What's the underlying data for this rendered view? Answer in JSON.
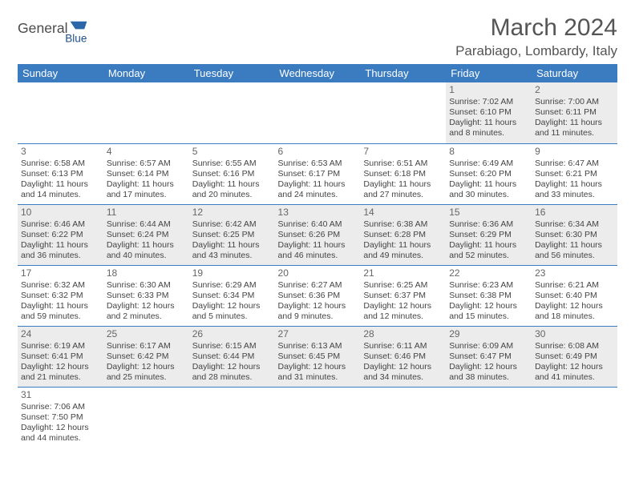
{
  "brand": {
    "name1": "General",
    "name2": "Blue",
    "logo_color": "#1c4e8a",
    "shape_color": "#2b66a8"
  },
  "title": "March 2024",
  "location": "Parabiago, Lombardy, Italy",
  "colors": {
    "header_bg": "#3b7bbf",
    "header_fg": "#ffffff",
    "row_alt": "#ececec",
    "border": "#3b7bbf",
    "text": "#444444"
  },
  "weekdays": [
    "Sunday",
    "Monday",
    "Tuesday",
    "Wednesday",
    "Thursday",
    "Friday",
    "Saturday"
  ],
  "weeks": [
    [
      null,
      null,
      null,
      null,
      null,
      {
        "d": "1",
        "sr": "Sunrise: 7:02 AM",
        "ss": "Sunset: 6:10 PM",
        "dl1": "Daylight: 11 hours",
        "dl2": "and 8 minutes."
      },
      {
        "d": "2",
        "sr": "Sunrise: 7:00 AM",
        "ss": "Sunset: 6:11 PM",
        "dl1": "Daylight: 11 hours",
        "dl2": "and 11 minutes."
      }
    ],
    [
      {
        "d": "3",
        "sr": "Sunrise: 6:58 AM",
        "ss": "Sunset: 6:13 PM",
        "dl1": "Daylight: 11 hours",
        "dl2": "and 14 minutes."
      },
      {
        "d": "4",
        "sr": "Sunrise: 6:57 AM",
        "ss": "Sunset: 6:14 PM",
        "dl1": "Daylight: 11 hours",
        "dl2": "and 17 minutes."
      },
      {
        "d": "5",
        "sr": "Sunrise: 6:55 AM",
        "ss": "Sunset: 6:16 PM",
        "dl1": "Daylight: 11 hours",
        "dl2": "and 20 minutes."
      },
      {
        "d": "6",
        "sr": "Sunrise: 6:53 AM",
        "ss": "Sunset: 6:17 PM",
        "dl1": "Daylight: 11 hours",
        "dl2": "and 24 minutes."
      },
      {
        "d": "7",
        "sr": "Sunrise: 6:51 AM",
        "ss": "Sunset: 6:18 PM",
        "dl1": "Daylight: 11 hours",
        "dl2": "and 27 minutes."
      },
      {
        "d": "8",
        "sr": "Sunrise: 6:49 AM",
        "ss": "Sunset: 6:20 PM",
        "dl1": "Daylight: 11 hours",
        "dl2": "and 30 minutes."
      },
      {
        "d": "9",
        "sr": "Sunrise: 6:47 AM",
        "ss": "Sunset: 6:21 PM",
        "dl1": "Daylight: 11 hours",
        "dl2": "and 33 minutes."
      }
    ],
    [
      {
        "d": "10",
        "sr": "Sunrise: 6:46 AM",
        "ss": "Sunset: 6:22 PM",
        "dl1": "Daylight: 11 hours",
        "dl2": "and 36 minutes."
      },
      {
        "d": "11",
        "sr": "Sunrise: 6:44 AM",
        "ss": "Sunset: 6:24 PM",
        "dl1": "Daylight: 11 hours",
        "dl2": "and 40 minutes."
      },
      {
        "d": "12",
        "sr": "Sunrise: 6:42 AM",
        "ss": "Sunset: 6:25 PM",
        "dl1": "Daylight: 11 hours",
        "dl2": "and 43 minutes."
      },
      {
        "d": "13",
        "sr": "Sunrise: 6:40 AM",
        "ss": "Sunset: 6:26 PM",
        "dl1": "Daylight: 11 hours",
        "dl2": "and 46 minutes."
      },
      {
        "d": "14",
        "sr": "Sunrise: 6:38 AM",
        "ss": "Sunset: 6:28 PM",
        "dl1": "Daylight: 11 hours",
        "dl2": "and 49 minutes."
      },
      {
        "d": "15",
        "sr": "Sunrise: 6:36 AM",
        "ss": "Sunset: 6:29 PM",
        "dl1": "Daylight: 11 hours",
        "dl2": "and 52 minutes."
      },
      {
        "d": "16",
        "sr": "Sunrise: 6:34 AM",
        "ss": "Sunset: 6:30 PM",
        "dl1": "Daylight: 11 hours",
        "dl2": "and 56 minutes."
      }
    ],
    [
      {
        "d": "17",
        "sr": "Sunrise: 6:32 AM",
        "ss": "Sunset: 6:32 PM",
        "dl1": "Daylight: 11 hours",
        "dl2": "and 59 minutes."
      },
      {
        "d": "18",
        "sr": "Sunrise: 6:30 AM",
        "ss": "Sunset: 6:33 PM",
        "dl1": "Daylight: 12 hours",
        "dl2": "and 2 minutes."
      },
      {
        "d": "19",
        "sr": "Sunrise: 6:29 AM",
        "ss": "Sunset: 6:34 PM",
        "dl1": "Daylight: 12 hours",
        "dl2": "and 5 minutes."
      },
      {
        "d": "20",
        "sr": "Sunrise: 6:27 AM",
        "ss": "Sunset: 6:36 PM",
        "dl1": "Daylight: 12 hours",
        "dl2": "and 9 minutes."
      },
      {
        "d": "21",
        "sr": "Sunrise: 6:25 AM",
        "ss": "Sunset: 6:37 PM",
        "dl1": "Daylight: 12 hours",
        "dl2": "and 12 minutes."
      },
      {
        "d": "22",
        "sr": "Sunrise: 6:23 AM",
        "ss": "Sunset: 6:38 PM",
        "dl1": "Daylight: 12 hours",
        "dl2": "and 15 minutes."
      },
      {
        "d": "23",
        "sr": "Sunrise: 6:21 AM",
        "ss": "Sunset: 6:40 PM",
        "dl1": "Daylight: 12 hours",
        "dl2": "and 18 minutes."
      }
    ],
    [
      {
        "d": "24",
        "sr": "Sunrise: 6:19 AM",
        "ss": "Sunset: 6:41 PM",
        "dl1": "Daylight: 12 hours",
        "dl2": "and 21 minutes."
      },
      {
        "d": "25",
        "sr": "Sunrise: 6:17 AM",
        "ss": "Sunset: 6:42 PM",
        "dl1": "Daylight: 12 hours",
        "dl2": "and 25 minutes."
      },
      {
        "d": "26",
        "sr": "Sunrise: 6:15 AM",
        "ss": "Sunset: 6:44 PM",
        "dl1": "Daylight: 12 hours",
        "dl2": "and 28 minutes."
      },
      {
        "d": "27",
        "sr": "Sunrise: 6:13 AM",
        "ss": "Sunset: 6:45 PM",
        "dl1": "Daylight: 12 hours",
        "dl2": "and 31 minutes."
      },
      {
        "d": "28",
        "sr": "Sunrise: 6:11 AM",
        "ss": "Sunset: 6:46 PM",
        "dl1": "Daylight: 12 hours",
        "dl2": "and 34 minutes."
      },
      {
        "d": "29",
        "sr": "Sunrise: 6:09 AM",
        "ss": "Sunset: 6:47 PM",
        "dl1": "Daylight: 12 hours",
        "dl2": "and 38 minutes."
      },
      {
        "d": "30",
        "sr": "Sunrise: 6:08 AM",
        "ss": "Sunset: 6:49 PM",
        "dl1": "Daylight: 12 hours",
        "dl2": "and 41 minutes."
      }
    ],
    [
      {
        "d": "31",
        "sr": "Sunrise: 7:06 AM",
        "ss": "Sunset: 7:50 PM",
        "dl1": "Daylight: 12 hours",
        "dl2": "and 44 minutes."
      },
      null,
      null,
      null,
      null,
      null,
      null
    ]
  ]
}
